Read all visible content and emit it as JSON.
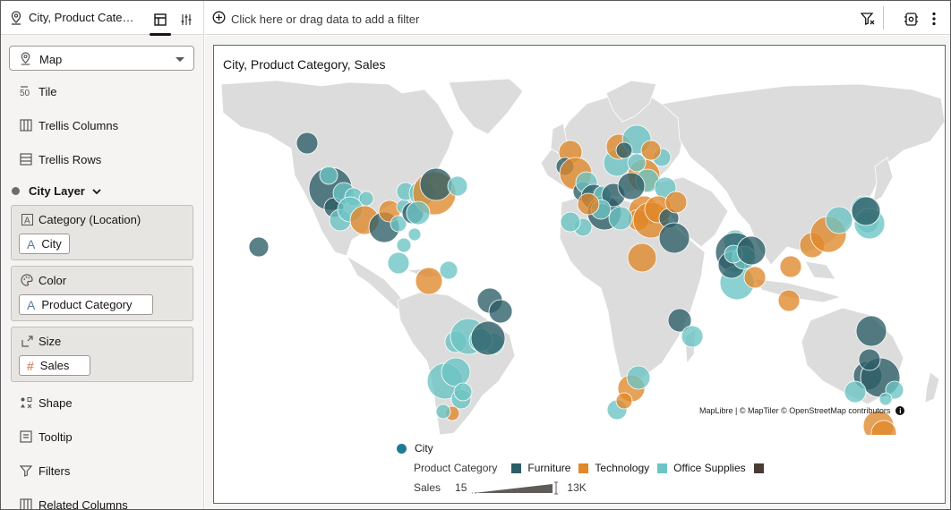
{
  "left_panel": {
    "datasource_title": "City, Product Categ...",
    "viz_type": "Map",
    "grammar_items": {
      "tile": "Tile",
      "trellis_columns": "Trellis Columns",
      "trellis_rows": "Trellis Rows",
      "shape": "Shape",
      "tooltip": "Tooltip",
      "filters": "Filters",
      "related_columns": "Related Columns"
    },
    "layer_name": "City Layer",
    "wells": {
      "category": {
        "label": "Category (Location)",
        "value": "City"
      },
      "color": {
        "label": "Color",
        "value": "Product Category"
      },
      "size": {
        "label": "Size",
        "value": "Sales"
      }
    }
  },
  "filter_bar": {
    "placeholder": "Click here or drag data to add a filter"
  },
  "visualization": {
    "title": "City, Product Category, Sales",
    "attribution": "MapLibre | © MapTiler © OpenStreetMap contributors",
    "info_glyph": "i",
    "legend": {
      "layer": "City",
      "color_title": "Product Category",
      "categories": [
        {
          "label": "Furniture",
          "color": "#2b5d66"
        },
        {
          "label": "Technology",
          "color": "#e0882a"
        },
        {
          "label": "Office Supplies",
          "color": "#6cc4c4"
        },
        {
          "label": "",
          "color": "#4a3b35"
        }
      ],
      "size_title": "Sales",
      "size_min": "15",
      "size_max": "13K"
    }
  },
  "colors": {
    "furniture": "#2b5d66",
    "technology": "#e0882a",
    "office_supplies": "#6cc4c4",
    "land": "#dcdcdc",
    "water": "#ffffff"
  }
}
